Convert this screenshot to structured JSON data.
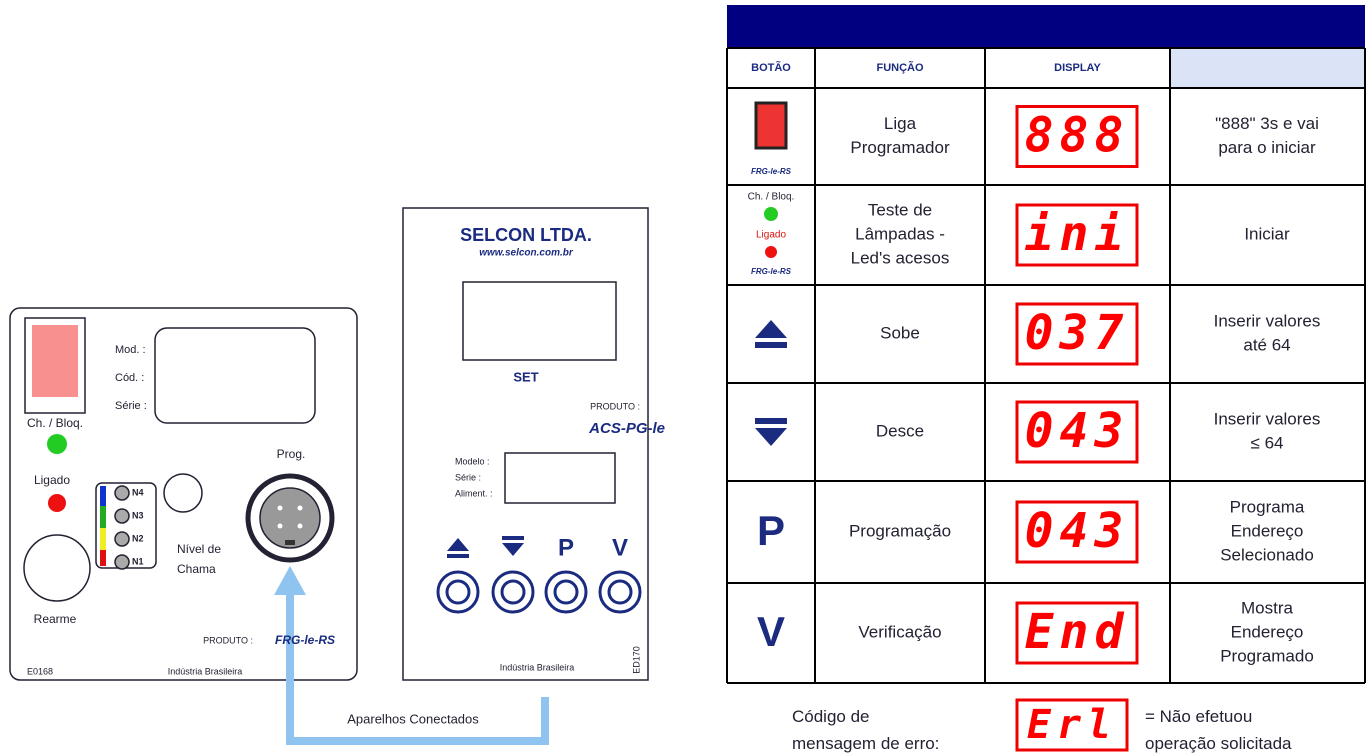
{
  "device_left": {
    "mod": "Mod. :",
    "cod": "Cód. :",
    "serie": "Série :",
    "ch_bloq": "Ch. / Bloq.",
    "ligado": "Ligado",
    "levels": [
      "N4",
      "N3",
      "N2",
      "N1"
    ],
    "nivel": [
      "Nível de",
      "Chama"
    ],
    "prog": "Prog.",
    "rearme": "Rearme",
    "produto": "PRODUTO :",
    "model": "FRG-le-RS",
    "code": "E0168",
    "industry": "Indústria Brasileira"
  },
  "device_right": {
    "brand": "SELCON LTDA.",
    "url": "www.selcon.com.br",
    "set": "SET",
    "produto": "PRODUTO :",
    "model": "ACS-PG-le",
    "fields": [
      "Modelo :",
      "Série :",
      "Aliment. :"
    ],
    "buttons": [
      "P",
      "V"
    ],
    "industry": "Indústria Brasileira",
    "code": "ED170"
  },
  "connector_label": "Aparelhos Conectados",
  "table": {
    "headers": [
      "BOTÃO",
      "FUNÇÃO",
      "DISPLAY"
    ],
    "rows": [
      {
        "button": [
          "FRG-le-RS"
        ],
        "function": [
          "Liga",
          "Programador"
        ],
        "display": "888",
        "description": [
          "\"888\" 3s e vai",
          "para o iniciar"
        ]
      },
      {
        "button": [
          "Ch. / Bloq.",
          "Ligado",
          "FRG-le-RS"
        ],
        "function": [
          "Teste de",
          "Lâmpadas -",
          "Led's acesos"
        ],
        "display": "ini",
        "description": [
          "Iniciar"
        ]
      },
      {
        "function": [
          "Sobe"
        ],
        "display": "037",
        "description": [
          "Inserir valores",
          "até 64"
        ]
      },
      {
        "function": [
          "Desce"
        ],
        "display": "043",
        "description": [
          "Inserir valores",
          "≤  64"
        ]
      },
      {
        "button": [
          "P"
        ],
        "function": [
          "Programação"
        ],
        "display": "043",
        "description": [
          "Programa",
          "Endereço",
          "Selecionado"
        ]
      },
      {
        "button": [
          "V"
        ],
        "function": [
          "Verificação"
        ],
        "display": "End",
        "description": [
          "Mostra",
          "Endereço",
          "Programado"
        ]
      }
    ]
  },
  "error": {
    "label": [
      "Código de",
      "mensagem de erro:"
    ],
    "display": "Erl",
    "description": [
      "= Não efetuou",
      "operação solicitada"
    ]
  }
}
